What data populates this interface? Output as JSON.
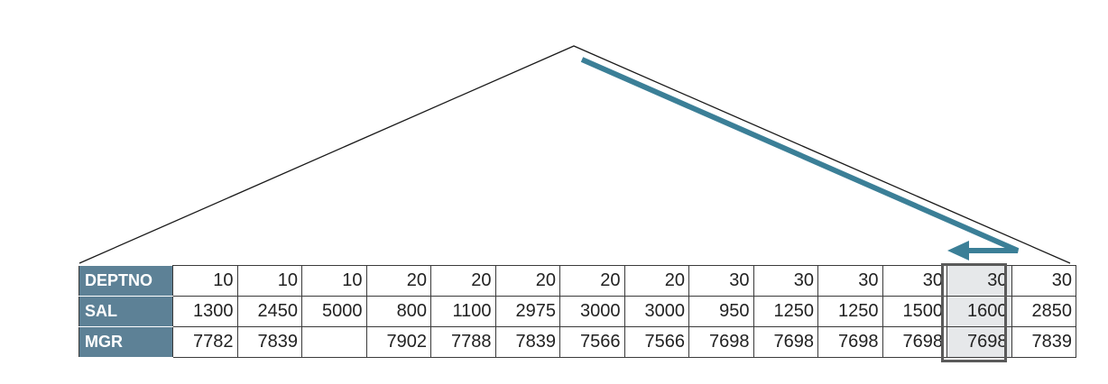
{
  "table": {
    "row_labels": [
      "DEPTNO",
      "SAL",
      "MGR"
    ],
    "deptno": [
      "10",
      "10",
      "10",
      "20",
      "20",
      "20",
      "20",
      "20",
      "30",
      "30",
      "30",
      "30",
      "30",
      "30"
    ],
    "sal": [
      "1300",
      "2450",
      "5000",
      "800",
      "1100",
      "2975",
      "3000",
      "3000",
      "950",
      "1250",
      "1250",
      "1500",
      "1600",
      "2850"
    ],
    "mgr": [
      "7782",
      "7839",
      "",
      "7902",
      "7788",
      "7839",
      "7566",
      "7566",
      "7698",
      "7698",
      "7698",
      "7698",
      "7698",
      "7839"
    ],
    "highlighted_column": 12
  },
  "colors": {
    "header_fill": "#5d8196",
    "arrow": "#3b7f97",
    "highlight_fill": "#e6e8ea",
    "highlight_border": "#5a5a5a"
  }
}
